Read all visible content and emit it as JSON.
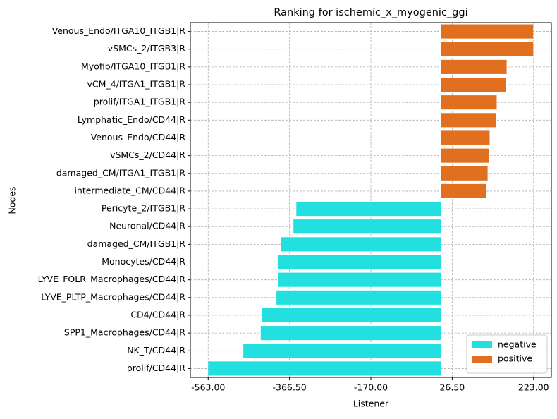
{
  "chart_data": {
    "type": "barh",
    "title": "Ranking for ischemic_x_myogenic_ggi",
    "x_label": "Listener",
    "y_label": "Nodes",
    "categories": [
      "Venous_Endo/ITGA10_ITGB1|R",
      "vSMCs_2/ITGB3|R",
      "Myofib/ITGA10_ITGB1|R",
      "vCM_4/ITGA1_ITGB1|R",
      "prolif/ITGA1_ITGB1|R",
      "Lymphatic_Endo/CD44|R",
      "Venous_Endo/CD44|R",
      "vSMCs_2/CD44|R",
      "damaged_CM/ITGA1_ITGB1|R",
      "intermediate_CM/CD44|R",
      "Pericyte_2/ITGB1|R",
      "Neuronal/CD44|R",
      "damaged_CM/ITGB1|R",
      "Monocytes/CD44|R",
      "LYVE_FOLR_Macrophages/CD44|R",
      "LYVE_PLTP_Macrophages/CD44|R",
      "CD4/CD44|R",
      "SPP1_Macrophages/CD44|R",
      "NK_T/CD44|R",
      "prolif/CD44|R"
    ],
    "series": [
      {
        "name": "negative",
        "color": "#22e0e0",
        "values": [
          null,
          null,
          null,
          null,
          null,
          null,
          null,
          null,
          null,
          null,
          -350,
          -357,
          -388,
          -395,
          -394,
          -398,
          -434,
          -436,
          -478,
          -563
        ]
      },
      {
        "name": "positive",
        "color": "#e07020",
        "values": [
          222,
          222,
          158,
          156,
          134,
          133,
          117,
          116,
          112,
          109,
          null,
          null,
          null,
          null,
          null,
          null,
          null,
          null,
          null,
          null
        ]
      }
    ],
    "xlim": [
      -606,
      266
    ],
    "xticks": [
      {
        "value": -563,
        "label": "-563.00"
      },
      {
        "value": -366.5,
        "label": "-366.50"
      },
      {
        "value": -170,
        "label": "-170.00"
      },
      {
        "value": 26.5,
        "label": "26.50"
      },
      {
        "value": 223,
        "label": "223.00"
      }
    ],
    "grid": true,
    "legend": "lower right"
  }
}
